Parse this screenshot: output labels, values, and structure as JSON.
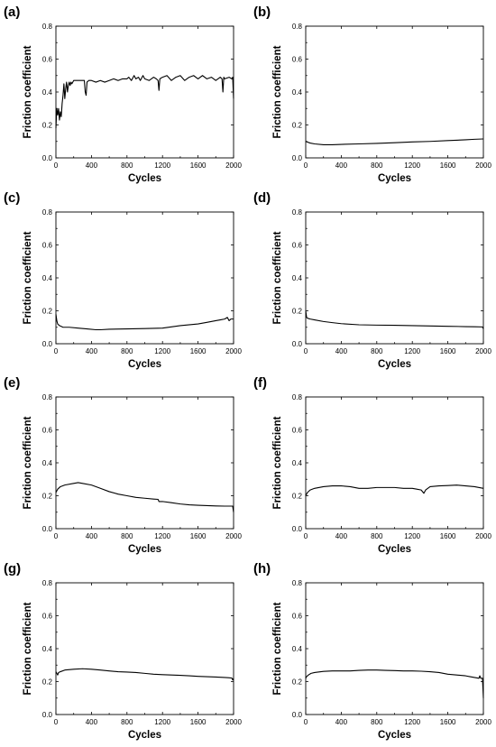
{
  "chart_data": [
    {
      "type": "line",
      "panel_label": "(a)",
      "xlabel": "Cycles",
      "ylabel": "Friction coefficient",
      "xlim": [
        0,
        2000
      ],
      "ylim": [
        0,
        0.8
      ],
      "xticks": [
        "0",
        "400",
        "800",
        "1200",
        "1600",
        "2000"
      ],
      "yticks": [
        "0.0",
        "0.2",
        "0.4",
        "0.6",
        "0.8"
      ],
      "grid": false,
      "series": [
        {
          "color": "#000000",
          "x": [
            0,
            10,
            20,
            30,
            40,
            50,
            60,
            70,
            80,
            90,
            100,
            110,
            120,
            130,
            140,
            150,
            160,
            170,
            180,
            200,
            220,
            250,
            280,
            300,
            320,
            330,
            340,
            350,
            370,
            400,
            450,
            500,
            550,
            600,
            650,
            700,
            750,
            800,
            820,
            850,
            880,
            900,
            930,
            950,
            980,
            1000,
            1050,
            1100,
            1130,
            1150,
            1160,
            1170,
            1200,
            1250,
            1300,
            1350,
            1400,
            1450,
            1500,
            1550,
            1600,
            1650,
            1700,
            1750,
            1800,
            1850,
            1870,
            1880,
            1890,
            1900,
            1950,
            1980,
            1990,
            2000
          ],
          "y": [
            0.18,
            0.3,
            0.26,
            0.3,
            0.23,
            0.28,
            0.25,
            0.33,
            0.38,
            0.45,
            0.36,
            0.42,
            0.46,
            0.4,
            0.44,
            0.46,
            0.44,
            0.46,
            0.45,
            0.47,
            0.47,
            0.47,
            0.47,
            0.47,
            0.47,
            0.4,
            0.38,
            0.46,
            0.47,
            0.47,
            0.46,
            0.47,
            0.46,
            0.47,
            0.48,
            0.47,
            0.48,
            0.48,
            0.49,
            0.47,
            0.5,
            0.48,
            0.49,
            0.47,
            0.5,
            0.48,
            0.47,
            0.49,
            0.48,
            0.47,
            0.41,
            0.48,
            0.49,
            0.5,
            0.47,
            0.49,
            0.5,
            0.47,
            0.49,
            0.5,
            0.48,
            0.5,
            0.48,
            0.49,
            0.47,
            0.49,
            0.48,
            0.4,
            0.49,
            0.48,
            0.49,
            0.48,
            0.49,
            0.36
          ]
        }
      ]
    },
    {
      "type": "line",
      "panel_label": "(b)",
      "xlabel": "Cycles",
      "ylabel": "Friction coefficient",
      "xlim": [
        0,
        2000
      ],
      "ylim": [
        0,
        0.8
      ],
      "xticks": [
        "0",
        "400",
        "800",
        "1200",
        "1600",
        "2000"
      ],
      "yticks": [
        "0.0",
        "0.2",
        "0.4",
        "0.6",
        "0.8"
      ],
      "grid": false,
      "series": [
        {
          "color": "#000000",
          "x": [
            0,
            50,
            100,
            200,
            300,
            400,
            600,
            800,
            1000,
            1200,
            1400,
            1600,
            1800,
            1900,
            2000
          ],
          "y": [
            0.1,
            0.09,
            0.085,
            0.08,
            0.08,
            0.082,
            0.085,
            0.088,
            0.092,
            0.097,
            0.1,
            0.105,
            0.11,
            0.113,
            0.115
          ]
        }
      ]
    },
    {
      "type": "line",
      "panel_label": "(c)",
      "xlabel": "Cycles",
      "ylabel": "Friction coefficient",
      "xlim": [
        0,
        2000
      ],
      "ylim": [
        0,
        0.8
      ],
      "xticks": [
        "0",
        "400",
        "800",
        "1200",
        "1600",
        "2000"
      ],
      "yticks": [
        "0.0",
        "0.2",
        "0.4",
        "0.6",
        "0.8"
      ],
      "grid": false,
      "series": [
        {
          "color": "#000000",
          "x": [
            0,
            10,
            20,
            40,
            80,
            150,
            250,
            350,
            450,
            500,
            600,
            800,
            1000,
            1200,
            1400,
            1600,
            1700,
            1800,
            1850,
            1900,
            1930,
            1950,
            1970,
            2000
          ],
          "y": [
            0.18,
            0.14,
            0.12,
            0.11,
            0.1,
            0.1,
            0.095,
            0.09,
            0.085,
            0.085,
            0.088,
            0.09,
            0.092,
            0.095,
            0.11,
            0.12,
            0.13,
            0.14,
            0.145,
            0.15,
            0.16,
            0.14,
            0.15,
            0.15
          ]
        }
      ]
    },
    {
      "type": "line",
      "panel_label": "(d)",
      "xlabel": "Cycles",
      "ylabel": "Friction coefficient",
      "xlim": [
        0,
        2000
      ],
      "ylim": [
        0,
        0.8
      ],
      "xticks": [
        "0",
        "400",
        "800",
        "1200",
        "1600",
        "2000"
      ],
      "yticks": [
        "0.0",
        "0.2",
        "0.4",
        "0.6",
        "0.8"
      ],
      "grid": false,
      "series": [
        {
          "color": "#000000",
          "x": [
            0,
            10,
            20,
            50,
            100,
            200,
            300,
            400,
            600,
            800,
            1000,
            1200,
            1400,
            1600,
            1800,
            1900,
            1990,
            2000
          ],
          "y": [
            0.2,
            0.16,
            0.155,
            0.15,
            0.145,
            0.135,
            0.128,
            0.122,
            0.115,
            0.113,
            0.112,
            0.11,
            0.108,
            0.106,
            0.104,
            0.103,
            0.102,
            0.09
          ]
        }
      ]
    },
    {
      "type": "line",
      "panel_label": "(e)",
      "xlabel": "Cycles",
      "ylabel": "Friction coefficient",
      "xlim": [
        0,
        2000
      ],
      "ylim": [
        0,
        0.8
      ],
      "xticks": [
        "0",
        "400",
        "800",
        "1200",
        "1600",
        "2000"
      ],
      "yticks": [
        "0.0",
        "0.2",
        "0.4",
        "0.6",
        "0.8"
      ],
      "grid": false,
      "series": [
        {
          "color": "#000000",
          "x": [
            0,
            20,
            50,
            100,
            200,
            250,
            300,
            400,
            500,
            600,
            700,
            800,
            900,
            1000,
            1100,
            1150,
            1160,
            1200,
            1300,
            1400,
            1500,
            1600,
            1700,
            1800,
            1900,
            1990,
            2000
          ],
          "y": [
            0.22,
            0.24,
            0.255,
            0.265,
            0.275,
            0.28,
            0.275,
            0.265,
            0.245,
            0.225,
            0.21,
            0.2,
            0.19,
            0.185,
            0.18,
            0.178,
            0.165,
            0.165,
            0.158,
            0.15,
            0.145,
            0.142,
            0.14,
            0.138,
            0.137,
            0.137,
            0.1
          ]
        }
      ]
    },
    {
      "type": "line",
      "panel_label": "(f)",
      "xlabel": "Cycles",
      "ylabel": "Friction coefficient",
      "xlim": [
        0,
        2000
      ],
      "ylim": [
        0,
        0.8
      ],
      "xticks": [
        "0",
        "400",
        "800",
        "1200",
        "1600",
        "2000"
      ],
      "yticks": [
        "0.0",
        "0.2",
        "0.4",
        "0.6",
        "0.8"
      ],
      "grid": false,
      "series": [
        {
          "color": "#000000",
          "x": [
            0,
            20,
            50,
            100,
            200,
            300,
            400,
            500,
            600,
            700,
            800,
            900,
            1000,
            1100,
            1200,
            1250,
            1300,
            1330,
            1350,
            1400,
            1500,
            1600,
            1700,
            1800,
            1900,
            2000
          ],
          "y": [
            0.2,
            0.22,
            0.235,
            0.245,
            0.255,
            0.26,
            0.26,
            0.255,
            0.245,
            0.245,
            0.25,
            0.25,
            0.25,
            0.245,
            0.245,
            0.24,
            0.235,
            0.215,
            0.235,
            0.255,
            0.26,
            0.262,
            0.265,
            0.26,
            0.255,
            0.245
          ]
        }
      ]
    },
    {
      "type": "line",
      "panel_label": "(g)",
      "xlabel": "Cycles",
      "ylabel": "Friction coefficient",
      "xlim": [
        0,
        2000
      ],
      "ylim": [
        0,
        0.8
      ],
      "xticks": [
        "0",
        "400",
        "800",
        "1200",
        "1600",
        "2000"
      ],
      "yticks": [
        "0.0",
        "0.2",
        "0.4",
        "0.6",
        "0.8"
      ],
      "grid": false,
      "series": [
        {
          "color": "#000000",
          "x": [
            0,
            10,
            20,
            30,
            50,
            100,
            200,
            300,
            400,
            500,
            600,
            700,
            800,
            900,
            1000,
            1100,
            1200,
            1300,
            1400,
            1500,
            1600,
            1700,
            1800,
            1900,
            1980,
            1990,
            2000
          ],
          "y": [
            0.26,
            0.25,
            0.24,
            0.255,
            0.26,
            0.27,
            0.275,
            0.278,
            0.275,
            0.27,
            0.265,
            0.26,
            0.258,
            0.255,
            0.25,
            0.245,
            0.242,
            0.24,
            0.238,
            0.235,
            0.232,
            0.23,
            0.228,
            0.225,
            0.222,
            0.21,
            0.22
          ]
        }
      ]
    },
    {
      "type": "line",
      "panel_label": "(h)",
      "xlabel": "Cycles",
      "ylabel": "Friction coefficient",
      "xlim": [
        0,
        2000
      ],
      "ylim": [
        0,
        0.8
      ],
      "xticks": [
        "0",
        "400",
        "800",
        "1200",
        "1600",
        "2000"
      ],
      "yticks": [
        "0.0",
        "0.2",
        "0.4",
        "0.6",
        "0.8"
      ],
      "grid": false,
      "series": [
        {
          "color": "#000000",
          "x": [
            0,
            10,
            30,
            60,
            100,
            200,
            300,
            400,
            500,
            600,
            700,
            800,
            900,
            1000,
            1100,
            1200,
            1300,
            1400,
            1500,
            1600,
            1700,
            1800,
            1850,
            1900,
            1950,
            1960,
            1970,
            1990,
            2000
          ],
          "y": [
            0.22,
            0.23,
            0.24,
            0.25,
            0.255,
            0.262,
            0.265,
            0.265,
            0.265,
            0.268,
            0.27,
            0.27,
            0.268,
            0.267,
            0.265,
            0.265,
            0.263,
            0.26,
            0.255,
            0.245,
            0.24,
            0.235,
            0.23,
            0.225,
            0.22,
            0.235,
            0.22,
            0.22,
            0.1
          ]
        }
      ]
    }
  ]
}
